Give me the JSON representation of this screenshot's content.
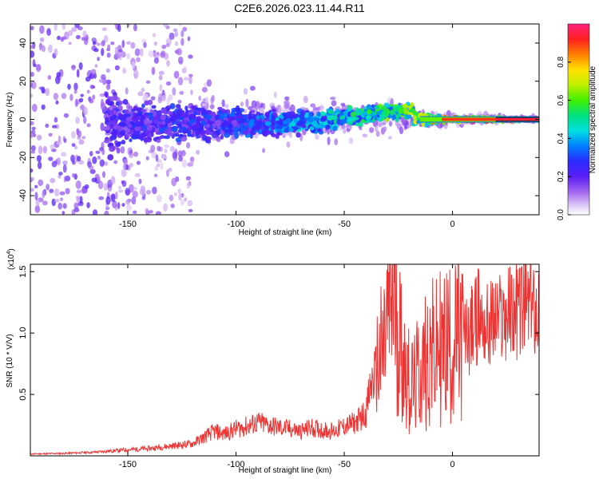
{
  "title": "C2E6.2026.023.11.44.R11",
  "chart_data": [
    {
      "type": "heatmap",
      "xlabel": "Height of straight line (km)",
      "ylabel": "Frequency (Hz)",
      "xlim": [
        -195,
        40
      ],
      "ylim": [
        -50,
        50
      ],
      "x_ticks": [
        -150,
        -100,
        -50,
        0
      ],
      "x_tick_labels": [
        "-150",
        "-100",
        "-50",
        "0"
      ],
      "y_ticks": [
        -40,
        -20,
        0,
        20,
        40
      ],
      "y_tick_labels": [
        "-40",
        "-20",
        "0",
        "20",
        "40"
      ],
      "colorbar": {
        "label": "Normalized spectral amplitude",
        "range": [
          0,
          1
        ],
        "ticks": [
          0.0,
          0.2,
          0.4,
          0.6,
          0.8
        ],
        "tick_labels": [
          "0.0",
          "0.2",
          "0.4",
          "0.6",
          "0.8"
        ],
        "colormap": "rainbow (white-purple-blue-cyan-green-yellow-red-magenta)"
      },
      "description_points": [
        {
          "x": -190,
          "y_spread": 50,
          "amp": 0.08
        },
        {
          "x": -150,
          "y_spread": 10,
          "amp": 0.25
        },
        {
          "x": -100,
          "y_spread": 6,
          "amp": 0.3
        },
        {
          "x": -50,
          "y_spread": 4,
          "amp": 0.45
        },
        {
          "x": -20,
          "y_spread": 3,
          "amp": 0.6
        },
        {
          "x": 0,
          "y_spread": 1,
          "amp": 0.85
        },
        {
          "x": 40,
          "y_spread": 0.5,
          "amp": 0.95
        }
      ]
    },
    {
      "type": "line",
      "xlabel": "Height of straight line (km)",
      "ylabel": "SNR (10 * V/V)",
      "y_multiplier": "(x10",
      "y_multiplier_exp": "4",
      "y_multiplier_close": ")",
      "xlim": [
        -195,
        40
      ],
      "ylim": [
        0,
        15600
      ],
      "x_ticks": [
        -150,
        -100,
        -50,
        0
      ],
      "x_tick_labels": [
        "-150",
        "-100",
        "-50",
        "0"
      ],
      "y_ticks": [
        5000,
        10000,
        15000
      ],
      "y_tick_labels": [
        "0.5",
        "1.0",
        "1.5"
      ],
      "series": [
        {
          "color": "#ee3333",
          "x": [
            -195,
            -180,
            -165,
            -150,
            -140,
            -130,
            -120,
            -115,
            -110,
            -105,
            -100,
            -95,
            -90,
            -85,
            -80,
            -75,
            -70,
            -65,
            -60,
            -55,
            -50,
            -45,
            -40,
            -38,
            -35,
            -32,
            -30,
            -28,
            -26,
            -24,
            -22,
            -20,
            -18,
            -16,
            -14,
            -12,
            -10,
            -8,
            -6,
            -4,
            -2,
            0,
            4,
            8,
            12,
            16,
            20,
            25,
            30,
            35,
            40
          ],
          "values": [
            150,
            200,
            300,
            500,
            600,
            800,
            1000,
            1500,
            2000,
            1800,
            2200,
            2400,
            2700,
            2500,
            2300,
            2200,
            2000,
            2300,
            2100,
            2000,
            2400,
            2700,
            3500,
            5500,
            7000,
            8500,
            11000,
            13000,
            12000,
            9000,
            7500,
            6000,
            5500,
            6500,
            7000,
            8000,
            8500,
            8000,
            9000,
            8500,
            9500,
            9000,
            9500,
            10000,
            11500,
            10500,
            11000,
            11500,
            12000,
            12300,
            12200
          ]
        }
      ]
    }
  ]
}
